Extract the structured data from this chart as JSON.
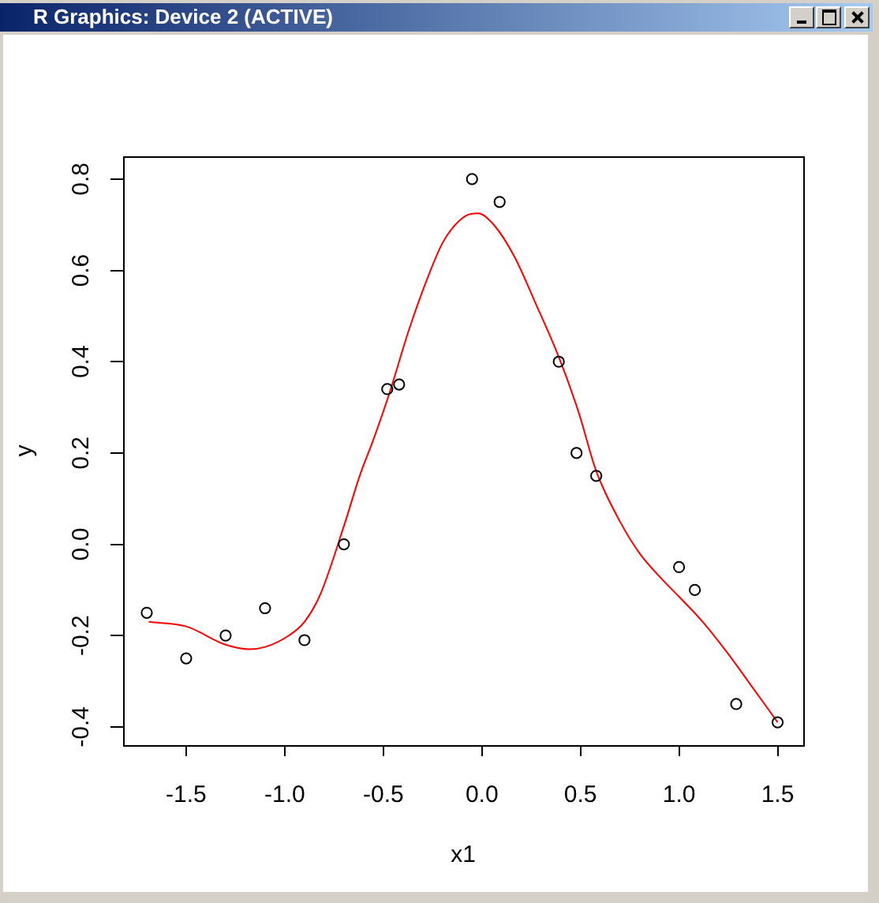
{
  "chart_data": {
    "type": "scatter",
    "xlabel": "x1",
    "ylabel": "y",
    "annotations": [
      "R Graphics: Device 2 (ACTIVE)"
    ],
    "xlim": [
      -1.82,
      1.63
    ],
    "ylim": [
      -0.44,
      0.85
    ],
    "xticks": [
      -1.5,
      {
        "value": -1,
        "label": "-1.0"
      },
      -0.5,
      {
        "value": 0,
        "label": "0.0"
      },
      0.5,
      {
        "value": 1,
        "label": "1.0"
      },
      1.5
    ],
    "yticks": [
      -0.4,
      -0.2,
      {
        "value": 0,
        "label": "0.0"
      },
      0.2,
      0.4,
      0.6,
      0.8
    ],
    "series": [
      {
        "type": "scatter",
        "color": "#000000",
        "marker": "circle",
        "x": [
          -1.7,
          -1.5,
          -1.3,
          -1.1,
          -0.9,
          -0.7,
          -0.48,
          -0.42,
          -0.05,
          0.09,
          0.39,
          0.48,
          0.58,
          1.0,
          1.08,
          1.29,
          1.5
        ],
        "values": [
          -0.15,
          -0.25,
          -0.2,
          -0.14,
          -0.21,
          0.0,
          0.34,
          0.35,
          0.8,
          0.75,
          0.4,
          0.2,
          0.15,
          -0.05,
          -0.1,
          -0.35,
          -0.39
        ]
      },
      {
        "type": "line",
        "color": "#ff0000",
        "marker": "none",
        "line_style": "solid",
        "x": [
          -1.69,
          -1.5,
          -1.3,
          -1.18,
          -1.1,
          -0.98,
          -0.9,
          -0.82,
          -0.7,
          -0.62,
          -0.55,
          -0.47,
          -0.37,
          -0.27,
          -0.2,
          -0.155,
          -0.08,
          -0.02,
          0.06,
          0.165,
          0.27,
          0.39,
          0.49,
          0.58,
          0.7,
          0.8,
          0.91,
          1.0,
          1.12,
          1.24,
          1.35,
          1.5
        ],
        "values": [
          -0.17,
          -0.18,
          -0.22,
          -0.23,
          -0.225,
          -0.2,
          -0.17,
          -0.11,
          0.04,
          0.15,
          0.23,
          0.33,
          0.47,
          0.59,
          0.66,
          0.69,
          0.72,
          0.725,
          0.7,
          0.63,
          0.53,
          0.41,
          0.29,
          0.16,
          0.05,
          -0.02,
          -0.075,
          -0.115,
          -0.17,
          -0.235,
          -0.3,
          -0.39
        ]
      }
    ]
  }
}
